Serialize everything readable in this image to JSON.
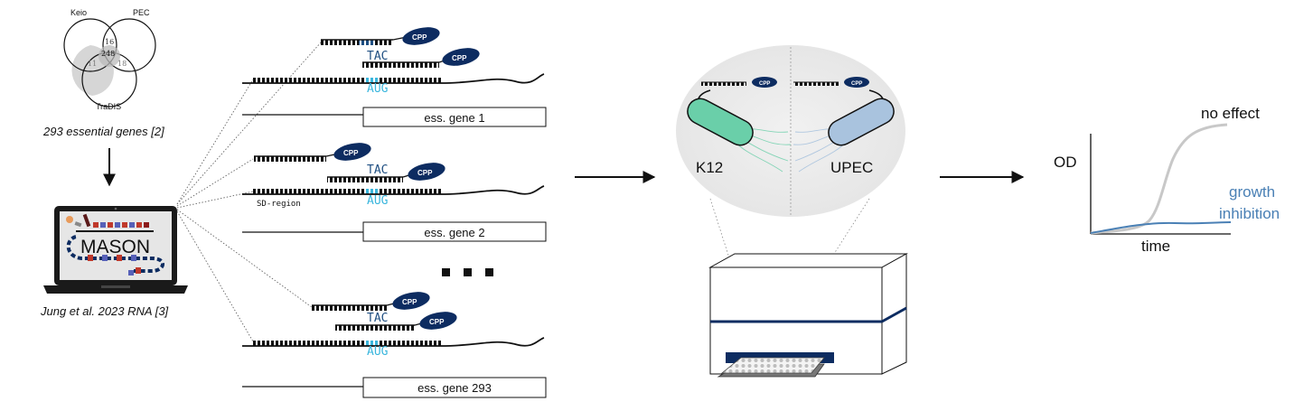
{
  "venn": {
    "labels": {
      "keio": "Keio",
      "pec": "PEC",
      "tradis": "TraDIS"
    },
    "counts": {
      "keio_pec": "16",
      "all": "248",
      "keio_tradis": "11",
      "pec_tradis": "18"
    }
  },
  "essential_caption": "293 essential genes [2]",
  "laptop": {
    "screen_title": "MASON"
  },
  "citation": "Jung et al. 2023 RNA [3]",
  "constructs": {
    "cpp_label": "CPP",
    "codon_anti": "TAC",
    "codon_start": "AUG",
    "sd_region": "SD-region",
    "genes": [
      "ess. gene 1",
      "ess. gene 2",
      "ess. gene 293"
    ]
  },
  "strains": {
    "left": "K12",
    "right": "UPEC"
  },
  "growth_plot": {
    "ylabel": "OD",
    "xlabel": "time",
    "curve_labels": {
      "no_effect": "no effect",
      "inhibition_line1": "growth",
      "inhibition_line2": "inhibition"
    }
  },
  "colors": {
    "navy": "#0d2c61",
    "cyan": "#3ab6dd",
    "codon_dark": "#1f4f82",
    "k12_green": "#6acfa9",
    "upec_blue": "#a9c3de",
    "inhibition_blue": "#4a80b5",
    "no_effect_gray": "#c8c8c8",
    "circle_bg": "#ececec"
  }
}
